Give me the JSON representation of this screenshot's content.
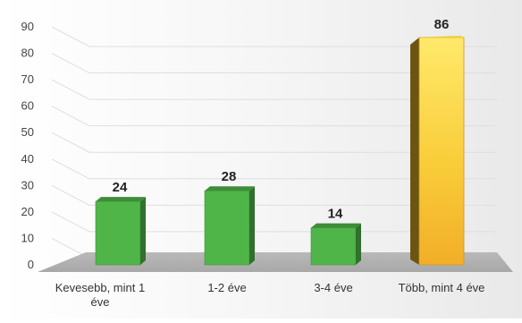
{
  "chart_data": {
    "type": "bar",
    "title": "",
    "xlabel": "",
    "ylabel": "",
    "ylim": [
      0,
      90
    ],
    "yticks": [
      0,
      10,
      20,
      30,
      40,
      50,
      60,
      70,
      80,
      90
    ],
    "grid": true,
    "legend": "none",
    "categories": [
      [
        "Kevesebb, mint 1",
        "éve"
      ],
      [
        "1-2 éve"
      ],
      [
        "3-4 éve"
      ],
      [
        "Több, mint 4 éve"
      ]
    ],
    "values": [
      24,
      28,
      14,
      86
    ],
    "value_labels": [
      "24",
      "28",
      "14",
      "86"
    ],
    "colors": [
      "#4fb548",
      "#4fb548",
      "#4fb548",
      "#f7c531"
    ],
    "highlight_index": 3
  }
}
